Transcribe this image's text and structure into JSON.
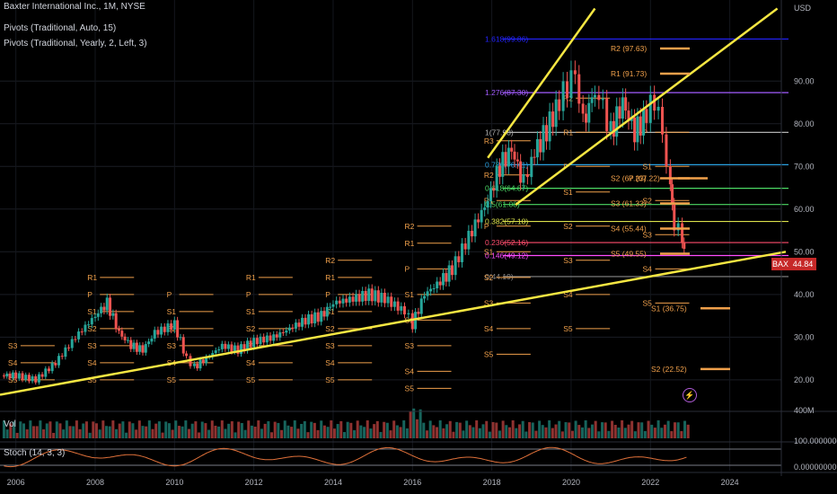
{
  "legend": {
    "title": "Baxter International Inc., 1M, NYSE",
    "ind1": "Pivots (Traditional, Auto, 15)",
    "ind2": "Pivots (Traditional, Yearly, 2, Left, 3)",
    "vol": "Vol",
    "stoch": "Stoch (14, 3, 3)"
  },
  "axis": {
    "currency": "USD",
    "price_ticks": [
      "90.00",
      "80.00",
      "70.00",
      "60.00",
      "50.00",
      "40.00",
      "30.00",
      "20.00"
    ],
    "year_ticks": [
      "2006",
      "2008",
      "2010",
      "2012",
      "2014",
      "2016",
      "2018",
      "2020",
      "2022",
      "2024"
    ],
    "vol_tick": "400M",
    "stoch_ticks": [
      "100.00000000",
      "0.00000000"
    ]
  },
  "ticker": {
    "symbol": "BAX",
    "price": "44.84"
  },
  "colors": {
    "bull": "#26a69a",
    "bear": "#ef5350",
    "pivot": "#f0a04b",
    "trendline": "#f5e642",
    "stoch": "#e0713a"
  },
  "fib_levels": [
    {
      "label": "1.618(99.86)",
      "value": 99.86,
      "color": "#2424ff"
    },
    {
      "label": "1.276(87.30)",
      "value": 87.3,
      "color": "#a35cff"
    },
    {
      "label": "1(77.98)",
      "value": 77.98,
      "color": "#b0b0b0"
    },
    {
      "label": "0.786(70.41)",
      "value": 70.41,
      "color": "#2aa0e0"
    },
    {
      "label": "0.618(64.87)",
      "value": 64.87,
      "color": "#4cd964"
    },
    {
      "label": "0.5(61.08)",
      "value": 61.08,
      "color": "#4cd964"
    },
    {
      "label": "0.382(57.10)",
      "value": 57.1,
      "color": "#d9e04b"
    },
    {
      "label": "0.236(52.16)",
      "value": 52.16,
      "color": "#ff4d6d"
    },
    {
      "label": "0.146(49.12)",
      "value": 49.12,
      "color": "#ff4dff"
    },
    {
      "label": "0(44.19)",
      "value": 44.19,
      "color": "#888888"
    }
  ],
  "yearly_pivots": [
    {
      "label": "R2 (97.63)",
      "tag": "R2",
      "value": 97.63
    },
    {
      "label": "R1 (91.73)",
      "tag": "R1",
      "value": 91.73
    },
    {
      "label": "P (67.22)",
      "tag": "P",
      "value": 67.22
    },
    {
      "label": "S2 (67.23)",
      "tag": "S2",
      "value": 67.23
    },
    {
      "label": "S3 (61.33)",
      "tag": "S3",
      "value": 61.33
    },
    {
      "label": "S4 (55.44)",
      "tag": "S4",
      "value": 55.44
    },
    {
      "label": "S5 (49.55)",
      "tag": "S5",
      "value": 49.55
    },
    {
      "label": "S1 (36.75)",
      "tag": "S1",
      "value": 36.75
    },
    {
      "label": "S2 (22.52)",
      "tag": "S2",
      "value": 22.52
    }
  ],
  "chart_data": {
    "type": "candlestick",
    "title": "Baxter International Inc., 1M, NYSE",
    "ylabel": "USD",
    "ylim": [
      15,
      100
    ],
    "xlim": [
      2005.6,
      2025.3
    ],
    "approx_monthly_close": [
      [
        2005.7,
        21
      ],
      [
        2006.0,
        21
      ],
      [
        2006.5,
        20
      ],
      [
        2007.0,
        24
      ],
      [
        2007.5,
        30
      ],
      [
        2008.0,
        35
      ],
      [
        2008.3,
        38
      ],
      [
        2008.6,
        31
      ],
      [
        2008.9,
        28
      ],
      [
        2009.2,
        27
      ],
      [
        2009.5,
        31
      ],
      [
        2010.0,
        33
      ],
      [
        2010.3,
        25
      ],
      [
        2010.5,
        23
      ],
      [
        2010.8,
        25
      ],
      [
        2011.2,
        28
      ],
      [
        2011.6,
        27
      ],
      [
        2012.0,
        29
      ],
      [
        2012.5,
        30
      ],
      [
        2012.9,
        32
      ],
      [
        2013.3,
        34
      ],
      [
        2013.7,
        35
      ],
      [
        2014.0,
        38
      ],
      [
        2014.5,
        39
      ],
      [
        2014.9,
        40
      ],
      [
        2015.3,
        39
      ],
      [
        2015.8,
        36
      ],
      [
        2016.0,
        33
      ],
      [
        2016.3,
        40
      ],
      [
        2016.7,
        43
      ],
      [
        2017.0,
        46
      ],
      [
        2017.5,
        55
      ],
      [
        2017.9,
        62
      ],
      [
        2018.2,
        70
      ],
      [
        2018.5,
        74
      ],
      [
        2018.8,
        66
      ],
      [
        2019.0,
        72
      ],
      [
        2019.3,
        77
      ],
      [
        2019.7,
        85
      ],
      [
        2019.9,
        89
      ],
      [
        2020.1,
        92
      ],
      [
        2020.3,
        80
      ],
      [
        2020.6,
        88
      ],
      [
        2020.8,
        84
      ],
      [
        2021.0,
        78
      ],
      [
        2021.3,
        85
      ],
      [
        2021.6,
        78
      ],
      [
        2021.9,
        82
      ],
      [
        2022.1,
        86
      ],
      [
        2022.3,
        78
      ],
      [
        2022.5,
        64
      ],
      [
        2022.6,
        57
      ],
      [
        2022.8,
        53
      ],
      [
        2022.9,
        45
      ]
    ]
  }
}
